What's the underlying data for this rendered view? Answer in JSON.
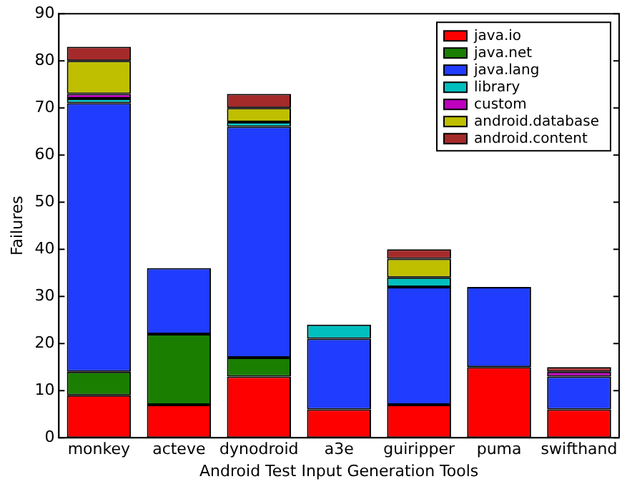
{
  "chart_data": {
    "type": "bar",
    "stacked": true,
    "xlabel": "Android Test Input Generation Tools",
    "ylabel": "Failures",
    "categories": [
      "monkey",
      "acteve",
      "dynodroid",
      "a3e",
      "guiripper",
      "puma",
      "swifthand"
    ],
    "ylim": [
      0,
      90
    ],
    "yticks": [
      0,
      10,
      20,
      30,
      40,
      50,
      60,
      70,
      80,
      90
    ],
    "grid": false,
    "legend": "top right",
    "series": [
      {
        "name": "java.io",
        "color": "#ff0000",
        "values": [
          9,
          7,
          13,
          6,
          7,
          15,
          6
        ]
      },
      {
        "name": "java.net",
        "color": "#1a7f00",
        "values": [
          5,
          15,
          4,
          0,
          0,
          0,
          0
        ]
      },
      {
        "name": "java.lang",
        "color": "#1f3cff",
        "values": [
          57,
          14,
          49,
          15,
          25,
          17,
          7
        ]
      },
      {
        "name": "library",
        "color": "#00bfbf",
        "values": [
          1,
          0,
          1,
          3,
          2,
          0,
          0
        ]
      },
      {
        "name": "custom",
        "color": "#bf00bf",
        "values": [
          1,
          0,
          0,
          0,
          0,
          0,
          1
        ]
      },
      {
        "name": "android.database",
        "color": "#bfbf00",
        "values": [
          7,
          0,
          3,
          0,
          4,
          0,
          0
        ]
      },
      {
        "name": "android.content",
        "color": "#a52a2a",
        "values": [
          3,
          0,
          3,
          0,
          2,
          0,
          1
        ]
      }
    ]
  }
}
